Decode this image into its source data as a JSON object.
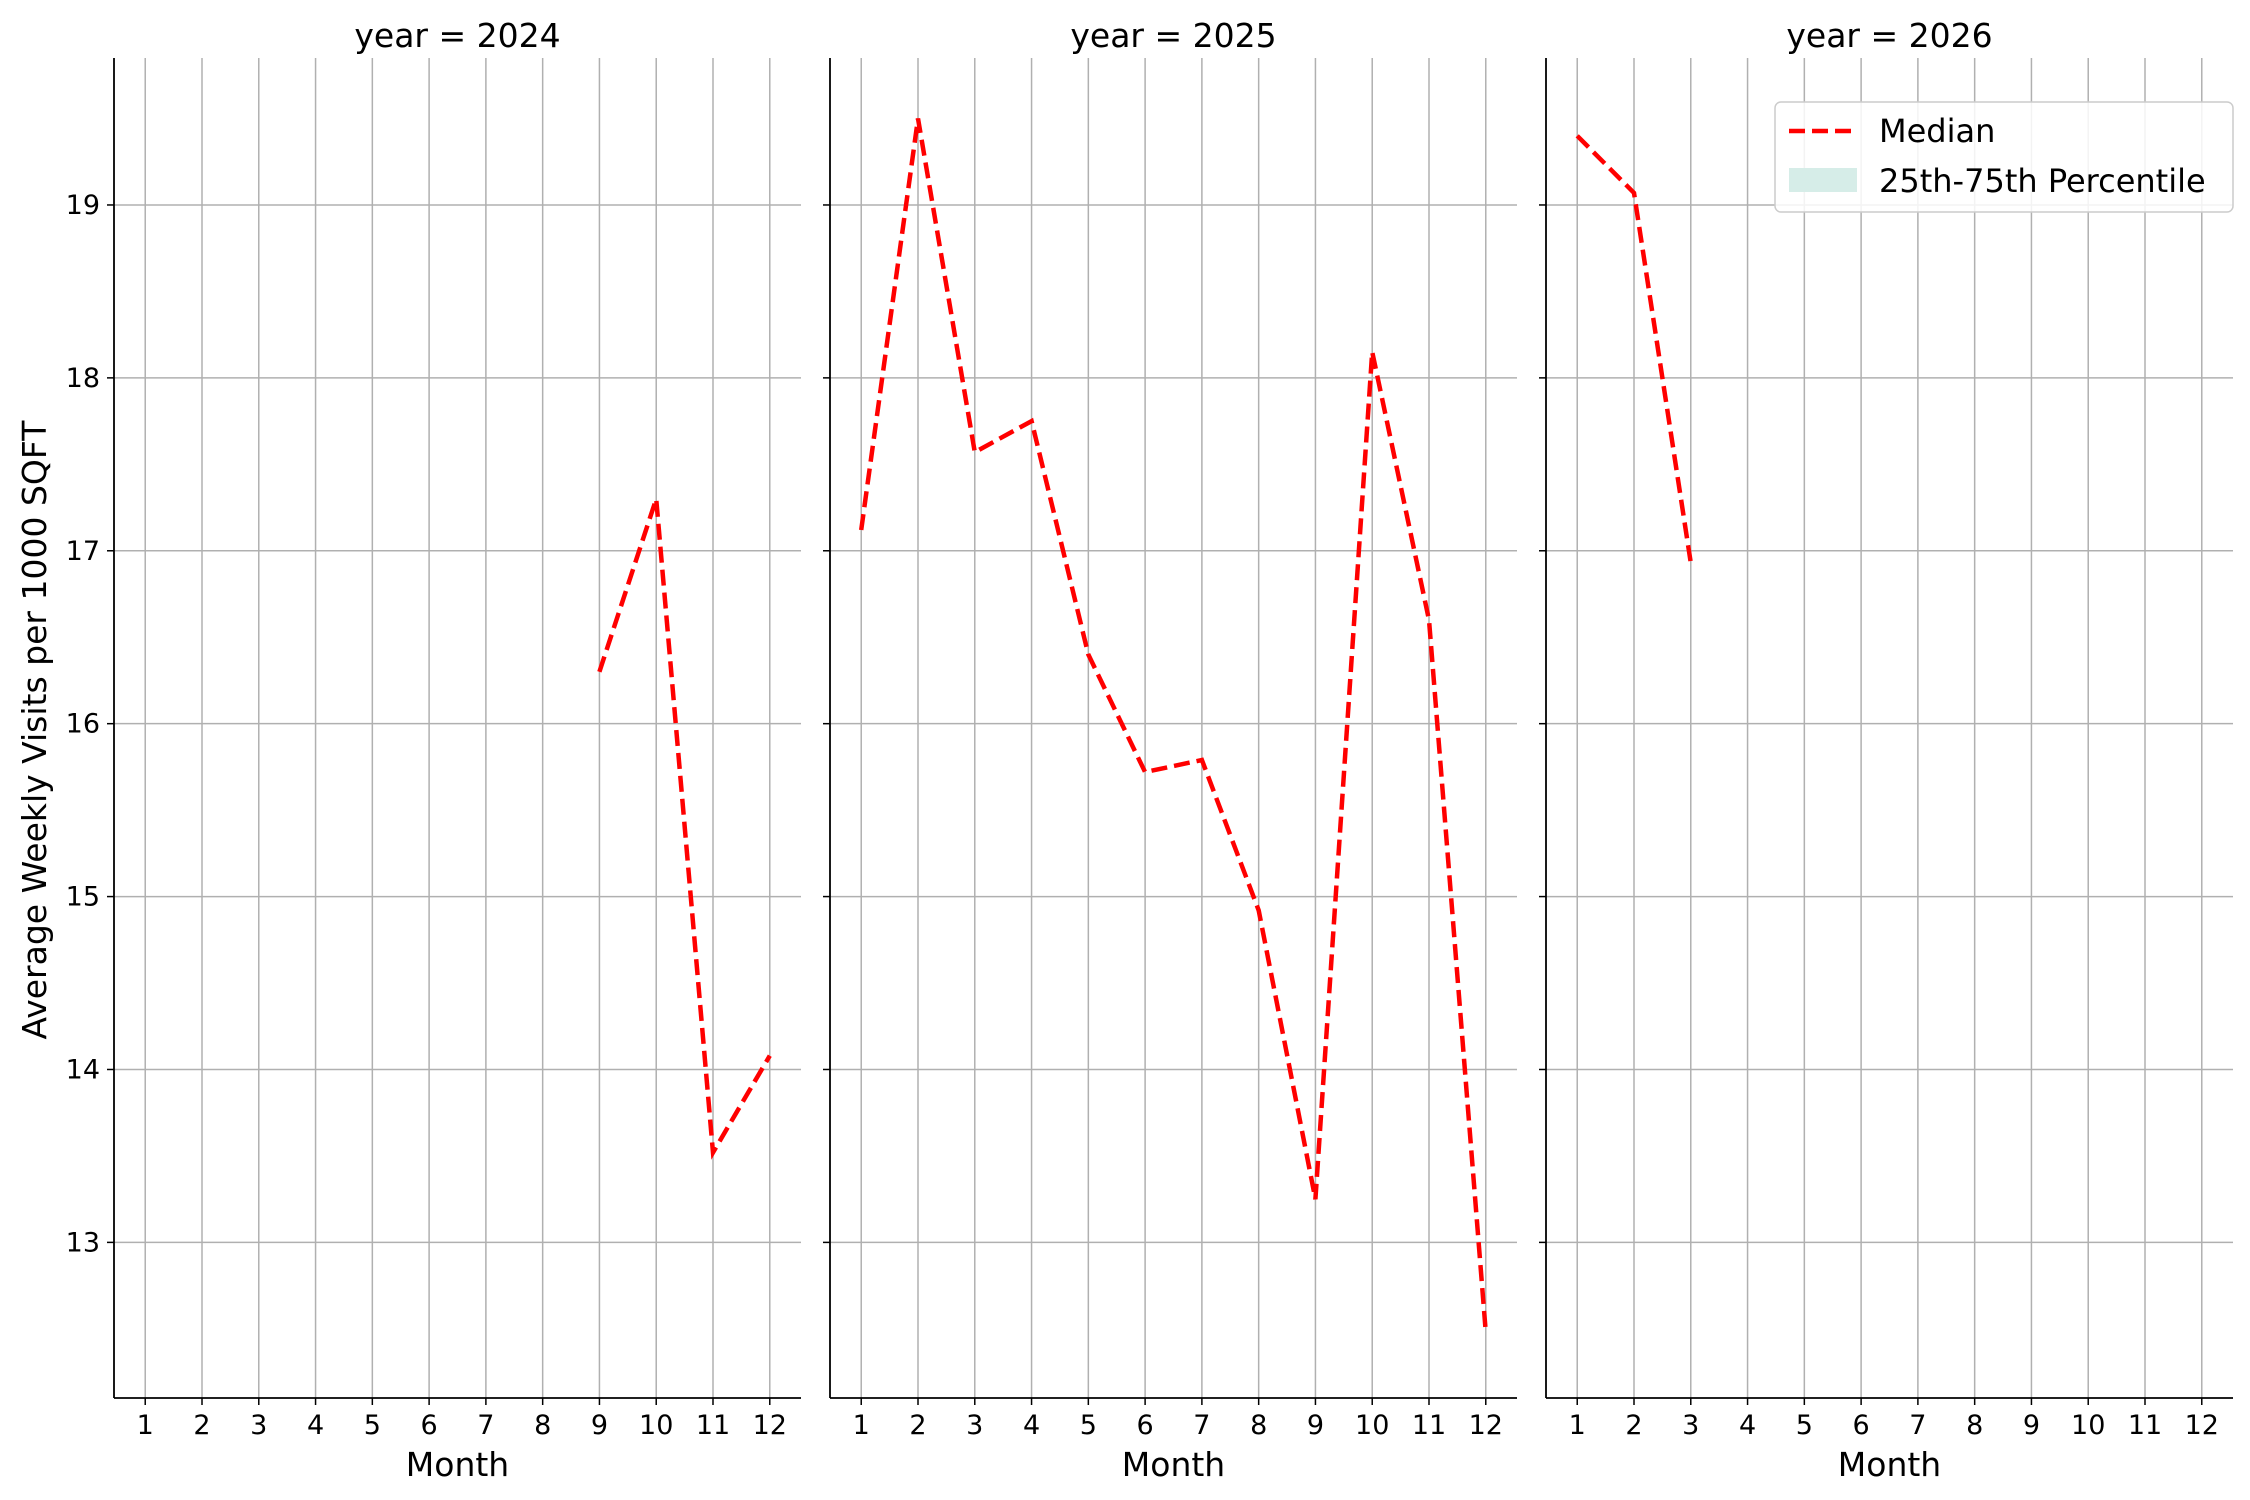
{
  "chart_data": {
    "type": "line",
    "ylabel": "Average Weekly Visits per 1000 SQFT",
    "xlabel": "Month",
    "x_ticks": [
      1,
      2,
      3,
      4,
      5,
      6,
      7,
      8,
      9,
      10,
      11,
      12
    ],
    "y_ticks": [
      13,
      14,
      15,
      16,
      17,
      18,
      19
    ],
    "ylim": [
      12.1,
      19.85
    ],
    "xlim": [
      0.45,
      12.55
    ],
    "grid": true,
    "legend": {
      "placement": "top-right",
      "entries": [
        {
          "label": "Median",
          "color": "#ff0000",
          "style": "dashed"
        },
        {
          "label": "25th-75th Percentile",
          "color": "#d6ede8",
          "style": "patch"
        }
      ]
    },
    "colors": {
      "median": "#ff0000",
      "band": "#d6ede8",
      "grid": "#b0b0b0"
    },
    "facets": [
      {
        "title": "year = 2024",
        "year": 2024,
        "x": [
          9,
          10,
          11,
          12
        ],
        "y": [
          16.3,
          17.3,
          13.52,
          14.08
        ]
      },
      {
        "title": "year = 2025",
        "year": 2025,
        "x": [
          1,
          2,
          3,
          4,
          5,
          6,
          7,
          8,
          9,
          10,
          11,
          12
        ],
        "y": [
          17.12,
          19.5,
          17.57,
          17.75,
          16.4,
          15.72,
          15.79,
          14.92,
          13.25,
          18.15,
          16.6,
          12.48
        ]
      },
      {
        "title": "year = 2026",
        "year": 2026,
        "x": [
          1,
          2,
          3
        ],
        "y": [
          19.4,
          19.07,
          16.93
        ]
      }
    ]
  }
}
